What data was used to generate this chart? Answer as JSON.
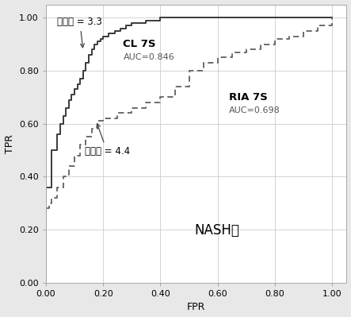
{
  "xlabel": "FPR",
  "ylabel": "TPR",
  "xlim": [
    0.0,
    1.05
  ],
  "ylim": [
    0.0,
    1.05
  ],
  "xticks": [
    0.0,
    0.2,
    0.4,
    0.6,
    0.8,
    1.0
  ],
  "yticks": [
    0.0,
    0.2,
    0.4,
    0.6,
    0.8,
    1.0
  ],
  "background_color": "#e8e8e8",
  "plot_bg_color": "#ffffff",
  "grid_color": "#cccccc",
  "cl7s_label": "CL 7S",
  "cl7s_auc": "AUC=0.846",
  "ria7s_label": "RIA 7S",
  "ria7s_auc": "AUC=0.698",
  "nash_label": "NASH组",
  "cutoff1_label": "截止値 = 3.3",
  "cutoff2_label": "截止値 = 4.4",
  "cl7s_color": "#3a3a3a",
  "ria7s_color": "#606060",
  "cl7s_x": [
    0.0,
    0.0,
    0.02,
    0.02,
    0.04,
    0.04,
    0.05,
    0.05,
    0.06,
    0.06,
    0.07,
    0.07,
    0.08,
    0.08,
    0.09,
    0.09,
    0.1,
    0.1,
    0.11,
    0.11,
    0.12,
    0.12,
    0.13,
    0.13,
    0.14,
    0.14,
    0.15,
    0.15,
    0.16,
    0.16,
    0.17,
    0.17,
    0.18,
    0.18,
    0.19,
    0.19,
    0.2,
    0.2,
    0.22,
    0.22,
    0.24,
    0.24,
    0.26,
    0.26,
    0.28,
    0.28,
    0.3,
    0.3,
    0.35,
    0.35,
    0.4,
    0.4,
    0.5,
    0.5,
    0.6,
    0.6,
    0.7,
    0.7,
    0.8,
    0.8,
    1.0
  ],
  "cl7s_y": [
    0.0,
    0.36,
    0.36,
    0.5,
    0.5,
    0.56,
    0.56,
    0.6,
    0.6,
    0.63,
    0.63,
    0.66,
    0.66,
    0.69,
    0.69,
    0.71,
    0.71,
    0.73,
    0.73,
    0.75,
    0.75,
    0.77,
    0.77,
    0.8,
    0.8,
    0.83,
    0.83,
    0.86,
    0.86,
    0.88,
    0.88,
    0.9,
    0.9,
    0.91,
    0.91,
    0.92,
    0.92,
    0.93,
    0.93,
    0.94,
    0.94,
    0.95,
    0.95,
    0.96,
    0.96,
    0.97,
    0.97,
    0.98,
    0.98,
    0.99,
    0.99,
    1.0,
    1.0,
    1.0,
    1.0,
    1.0,
    1.0,
    1.0,
    1.0,
    1.0,
    1.0
  ],
  "ria7s_x": [
    0.0,
    0.0,
    0.01,
    0.01,
    0.02,
    0.02,
    0.04,
    0.04,
    0.06,
    0.06,
    0.08,
    0.08,
    0.1,
    0.1,
    0.12,
    0.12,
    0.14,
    0.14,
    0.16,
    0.16,
    0.18,
    0.18,
    0.2,
    0.2,
    0.25,
    0.25,
    0.3,
    0.3,
    0.35,
    0.35,
    0.4,
    0.4,
    0.45,
    0.45,
    0.5,
    0.5,
    0.55,
    0.55,
    0.6,
    0.6,
    0.65,
    0.65,
    0.7,
    0.7,
    0.75,
    0.75,
    0.8,
    0.8,
    0.85,
    0.85,
    0.9,
    0.9,
    0.95,
    0.95,
    1.0,
    1.0
  ],
  "ria7s_y": [
    0.0,
    0.28,
    0.28,
    0.3,
    0.3,
    0.32,
    0.32,
    0.36,
    0.36,
    0.4,
    0.4,
    0.44,
    0.44,
    0.48,
    0.48,
    0.52,
    0.52,
    0.55,
    0.55,
    0.58,
    0.58,
    0.61,
    0.61,
    0.62,
    0.62,
    0.64,
    0.64,
    0.66,
    0.66,
    0.68,
    0.68,
    0.7,
    0.7,
    0.74,
    0.74,
    0.8,
    0.8,
    0.83,
    0.83,
    0.85,
    0.85,
    0.87,
    0.87,
    0.88,
    0.88,
    0.9,
    0.9,
    0.92,
    0.92,
    0.93,
    0.93,
    0.95,
    0.95,
    0.97,
    0.97,
    1.0
  ],
  "cutoff1_fontsize": 8.5,
  "cutoff2_fontsize": 8.5,
  "label_fontsize": 9.5,
  "auc_fontsize": 8,
  "axis_label_fontsize": 9,
  "nash_fontsize": 12,
  "tick_fontsize": 8
}
